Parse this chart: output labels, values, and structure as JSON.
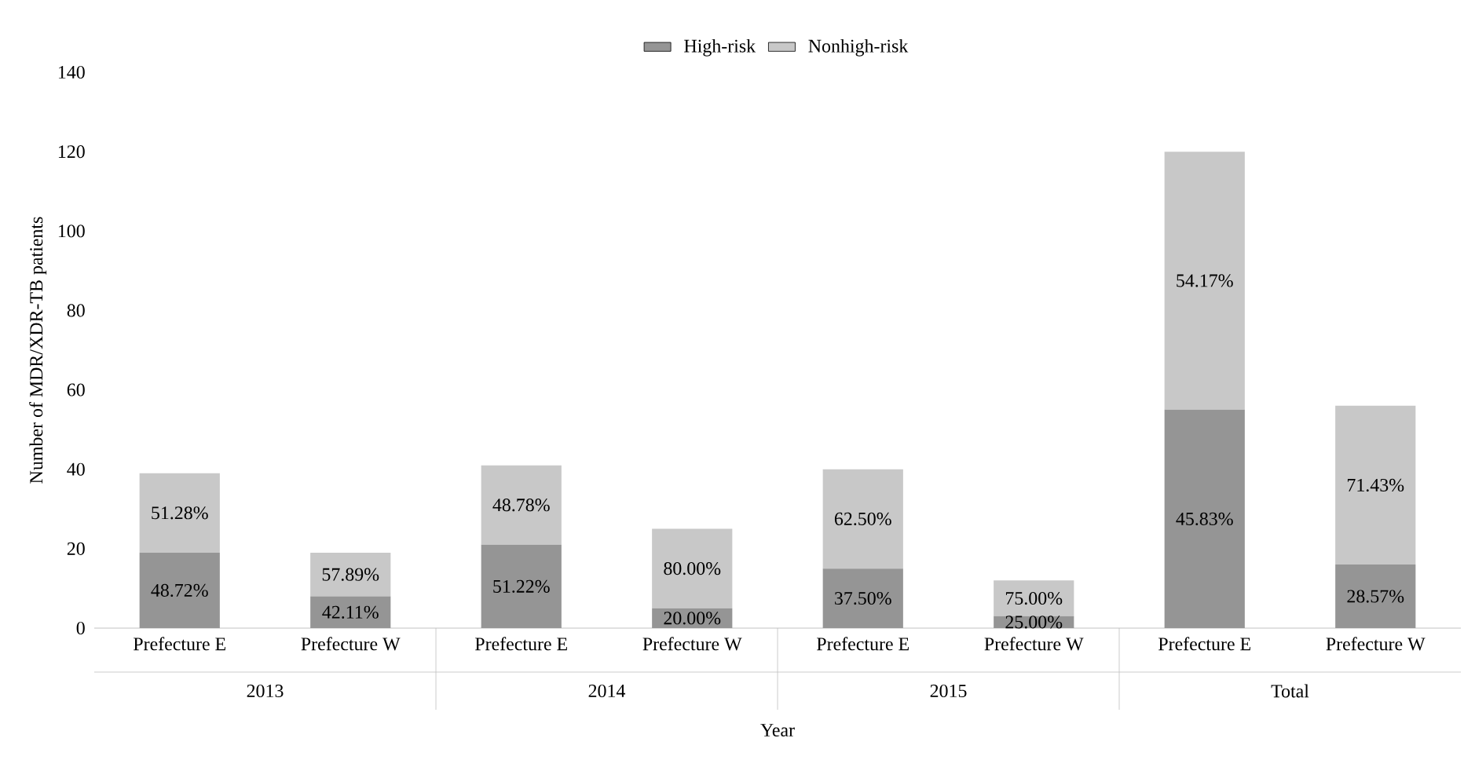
{
  "chart_data": {
    "type": "bar",
    "stacked": true,
    "xlabel": "Year",
    "ylabel": "Number of MDR/XDR-TB patients",
    "categories": [
      "Prefecture E",
      "Prefecture W",
      "Prefecture E",
      "Prefecture W",
      "Prefecture E",
      "Prefecture W",
      "Prefecture E",
      "Prefecture W"
    ],
    "series": [
      {
        "name": "High-risk",
        "color": "#959595",
        "values": [
          19,
          8,
          21,
          5,
          15,
          3,
          55,
          16
        ]
      },
      {
        "name": "Nonhigh-risk",
        "color": "#c8c8c8",
        "values": [
          20,
          11,
          20,
          20,
          25,
          9,
          65,
          40
        ]
      }
    ],
    "annotations": [
      "2013",
      "2014",
      "2015",
      "Total",
      "48.72%",
      "51.28%",
      "42.11%",
      "57.89%",
      "51.22%",
      "48.78%",
      "20.00%",
      "80.00%",
      "37.50%",
      "62.50%",
      "25.00%",
      "75.00%",
      "45.83%",
      "54.17%",
      "28.57%",
      "71.43%"
    ],
    "ylim": [
      0,
      140
    ],
    "yticks": [
      0,
      20,
      40,
      60,
      80,
      100,
      120,
      140
    ],
    "legend": "top",
    "grid": false
  }
}
